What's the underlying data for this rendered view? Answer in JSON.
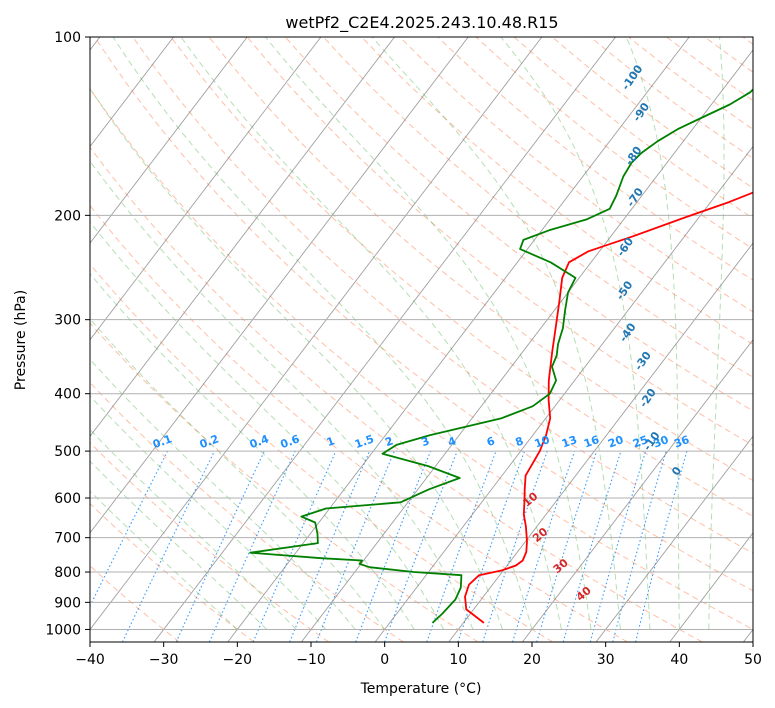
{
  "chart_data": {
    "type": "line",
    "title": "wetPf2_C2E4.2025.243.10.48.R15",
    "xlabel": "Temperature (°C)",
    "ylabel": "Pressure (hPa)",
    "xlim": [
      -40,
      50
    ],
    "ylim": [
      1050,
      100
    ],
    "y_scale": "log",
    "x_ticks": [
      -40,
      -30,
      -20,
      -10,
      0,
      10,
      20,
      30,
      40,
      50
    ],
    "x_tick_labels": [
      "−40",
      "−30",
      "−20",
      "−10",
      "0",
      "10",
      "20",
      "30",
      "40",
      "50"
    ],
    "y_ticks": [
      100,
      200,
      300,
      400,
      500,
      600,
      700,
      800,
      900,
      1000
    ],
    "y_tick_labels": [
      "100",
      "200",
      "300",
      "400",
      "500",
      "600",
      "700",
      "800",
      "900",
      "1000"
    ],
    "grid": true,
    "colors": {
      "temperature": "#ff0000",
      "dewpoint": "#008000",
      "dry_adiabats": "#ff7f50",
      "moist_adiabats": "#2ca02c",
      "mixing_ratio": "#1e90ff",
      "isotherms": "#808080",
      "moist_labels": "#1f77b4",
      "dry_labels": "#d62728"
    },
    "series": [
      {
        "key": "temperature",
        "points": [
          [
            12.8,
            975
          ],
          [
            9.0,
            925
          ],
          [
            7.5,
            880
          ],
          [
            6.8,
            840
          ],
          [
            7.2,
            810
          ],
          [
            9.8,
            795
          ],
          [
            11.2,
            780
          ],
          [
            11.6,
            765
          ],
          [
            11.2,
            740
          ],
          [
            10.2,
            710
          ],
          [
            8.5,
            670
          ],
          [
            7.0,
            640
          ],
          [
            5.8,
            610
          ],
          [
            4.5,
            580
          ],
          [
            3.2,
            550
          ],
          [
            2.9,
            525
          ],
          [
            2.6,
            500
          ],
          [
            1.8,
            470
          ],
          [
            0.6,
            440
          ],
          [
            -1.5,
            410
          ],
          [
            -3.5,
            380
          ],
          [
            -6.0,
            340
          ],
          [
            -8.0,
            310
          ],
          [
            -10.2,
            280
          ],
          [
            -12.3,
            255
          ],
          [
            -13.0,
            240
          ],
          [
            -11.5,
            230
          ],
          [
            -7.0,
            217
          ],
          [
            -2.0,
            202
          ],
          [
            2.5,
            190
          ],
          [
            7.5,
            175
          ],
          [
            11.0,
            163
          ],
          [
            12.8,
            150
          ],
          [
            13.5,
            140
          ],
          [
            15.0,
            128
          ],
          [
            17.0,
            118
          ],
          [
            18.8,
            108
          ],
          [
            20.3,
            100
          ]
        ]
      },
      {
        "key": "dewpoint",
        "points": [
          [
            5.8,
            975
          ],
          [
            6.2,
            940
          ],
          [
            6.5,
            890
          ],
          [
            6.0,
            850
          ],
          [
            4.8,
            810
          ],
          [
            -2.0,
            800
          ],
          [
            -8.5,
            785
          ],
          [
            -10.2,
            775
          ],
          [
            -10.2,
            765
          ],
          [
            -16.0,
            758
          ],
          [
            -26.2,
            742
          ],
          [
            -18.0,
            715
          ],
          [
            -19.0,
            690
          ],
          [
            -20.5,
            660
          ],
          [
            -23.0,
            645
          ],
          [
            -20.5,
            625
          ],
          [
            -11.0,
            610
          ],
          [
            -8.5,
            580
          ],
          [
            -5.5,
            555
          ],
          [
            -11.0,
            530
          ],
          [
            -18.5,
            505
          ],
          [
            -17.5,
            488
          ],
          [
            -14.0,
            470
          ],
          [
            -6.0,
            440
          ],
          [
            -3.0,
            420
          ],
          [
            -2.0,
            400
          ],
          [
            -2.5,
            380
          ],
          [
            -4.5,
            360
          ],
          [
            -5.0,
            345
          ],
          [
            -6.0,
            330
          ],
          [
            -7.0,
            310
          ],
          [
            -8.5,
            290
          ],
          [
            -10.0,
            270
          ],
          [
            -10.5,
            255
          ],
          [
            -15.5,
            240
          ],
          [
            -21.0,
            228
          ],
          [
            -21.5,
            220
          ],
          [
            -19.0,
            212
          ],
          [
            -15.0,
            203
          ],
          [
            -13.0,
            195
          ],
          [
            -13.5,
            185
          ],
          [
            -14.5,
            172
          ],
          [
            -14.8,
            163
          ],
          [
            -14.5,
            157
          ],
          [
            -13.5,
            150
          ],
          [
            -12.0,
            143
          ],
          [
            -10.0,
            137
          ],
          [
            -7.5,
            130
          ],
          [
            -6.0,
            124
          ],
          [
            -5.5,
            118
          ],
          [
            -5.0,
            110
          ],
          [
            -4.5,
            100
          ]
        ]
      }
    ],
    "mixing_ratio_labels": [
      "0.1",
      "0.2",
      "0.4",
      "0.6",
      "1",
      "1.5",
      "2",
      "3",
      "4",
      "6",
      "8",
      "10",
      "13",
      "16",
      "20",
      "25",
      "30",
      "36"
    ],
    "mixing_ratio_values": [
      0.1,
      0.2,
      0.4,
      0.6,
      1,
      1.5,
      2,
      3,
      4,
      6,
      8,
      10,
      13,
      16,
      20,
      25,
      30,
      36
    ],
    "moist_adiabat_labels": [
      "-100",
      "-90",
      "-80",
      "-70",
      "-60",
      "-50",
      "-40",
      "-30",
      "-20",
      "-10",
      "0"
    ],
    "dry_adiabat_labels": [
      "10",
      "20",
      "30",
      "40"
    ]
  }
}
